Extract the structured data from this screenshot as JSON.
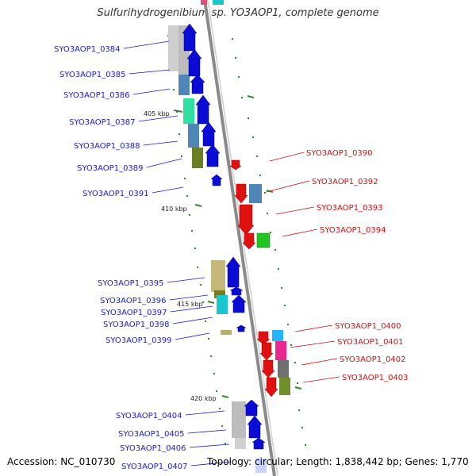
{
  "title": "Sulfurihydrogenibium sp. YO3AOP1, complete genome",
  "footer": {
    "accession": "Accession: NC_010730",
    "summary": "Topology: circular; Length: 1,838,442 bp; Genes: 1,770"
  },
  "colors": {
    "left_label": "#1a1acc",
    "right_label": "#cc1111",
    "backbone": "#8a8a8a",
    "tick": "#2e8b2e",
    "blue_gene": "#0b0bd6",
    "red_gene": "#e01111",
    "green_gene": "#22c422"
  },
  "position_labels": [
    "405 kbp",
    "410 kbp",
    "415 kbp",
    "420 kbp"
  ],
  "left_genes": [
    "SYO3AOP1_0384",
    "SYO3AOP1_0385",
    "SYO3AOP1_0386",
    "SYO3AOP1_0387",
    "SYO3AOP1_0388",
    "SYO3AOP1_0389",
    "SYO3AOP1_0391",
    "SYO3AOP1_0395",
    "SYO3AOP1_0396",
    "SYO3AOP1_0397",
    "SYO3AOP1_0398",
    "SYO3AOP1_0399",
    "SYO3AOP1_0404",
    "SYO3AOP1_0405",
    "SYO3AOP1_0406",
    "SYO3AOP1_0407"
  ],
  "right_genes": [
    "SYO3AOP1_0390",
    "SYO3AOP1_0392",
    "SYO3AOP1_0393",
    "SYO3AOP1_0394",
    "SYO3AOP1_0400",
    "SYO3AOP1_0401",
    "SYO3AOP1_0402",
    "SYO3AOP1_0403"
  ]
}
